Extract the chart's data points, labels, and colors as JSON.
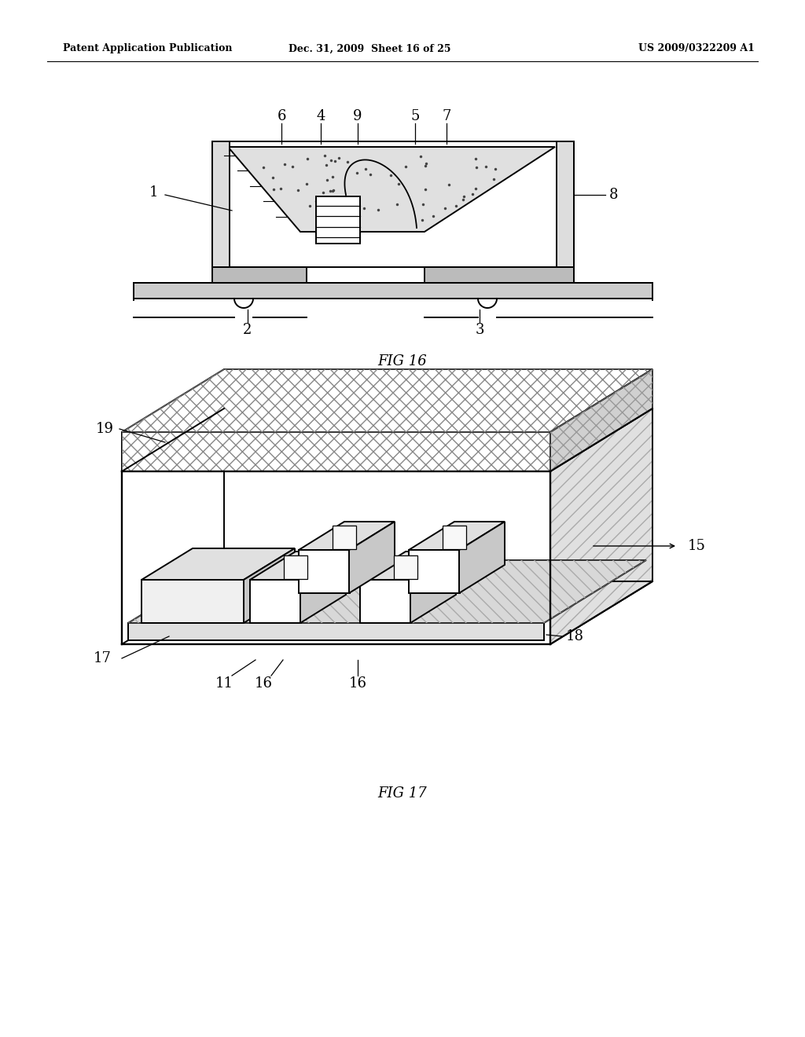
{
  "bg_color": "#ffffff",
  "header_left": "Patent Application Publication",
  "header_center": "Dec. 31, 2009  Sheet 16 of 25",
  "header_right": "US 2009/0322209 A1",
  "line_color": "#000000"
}
